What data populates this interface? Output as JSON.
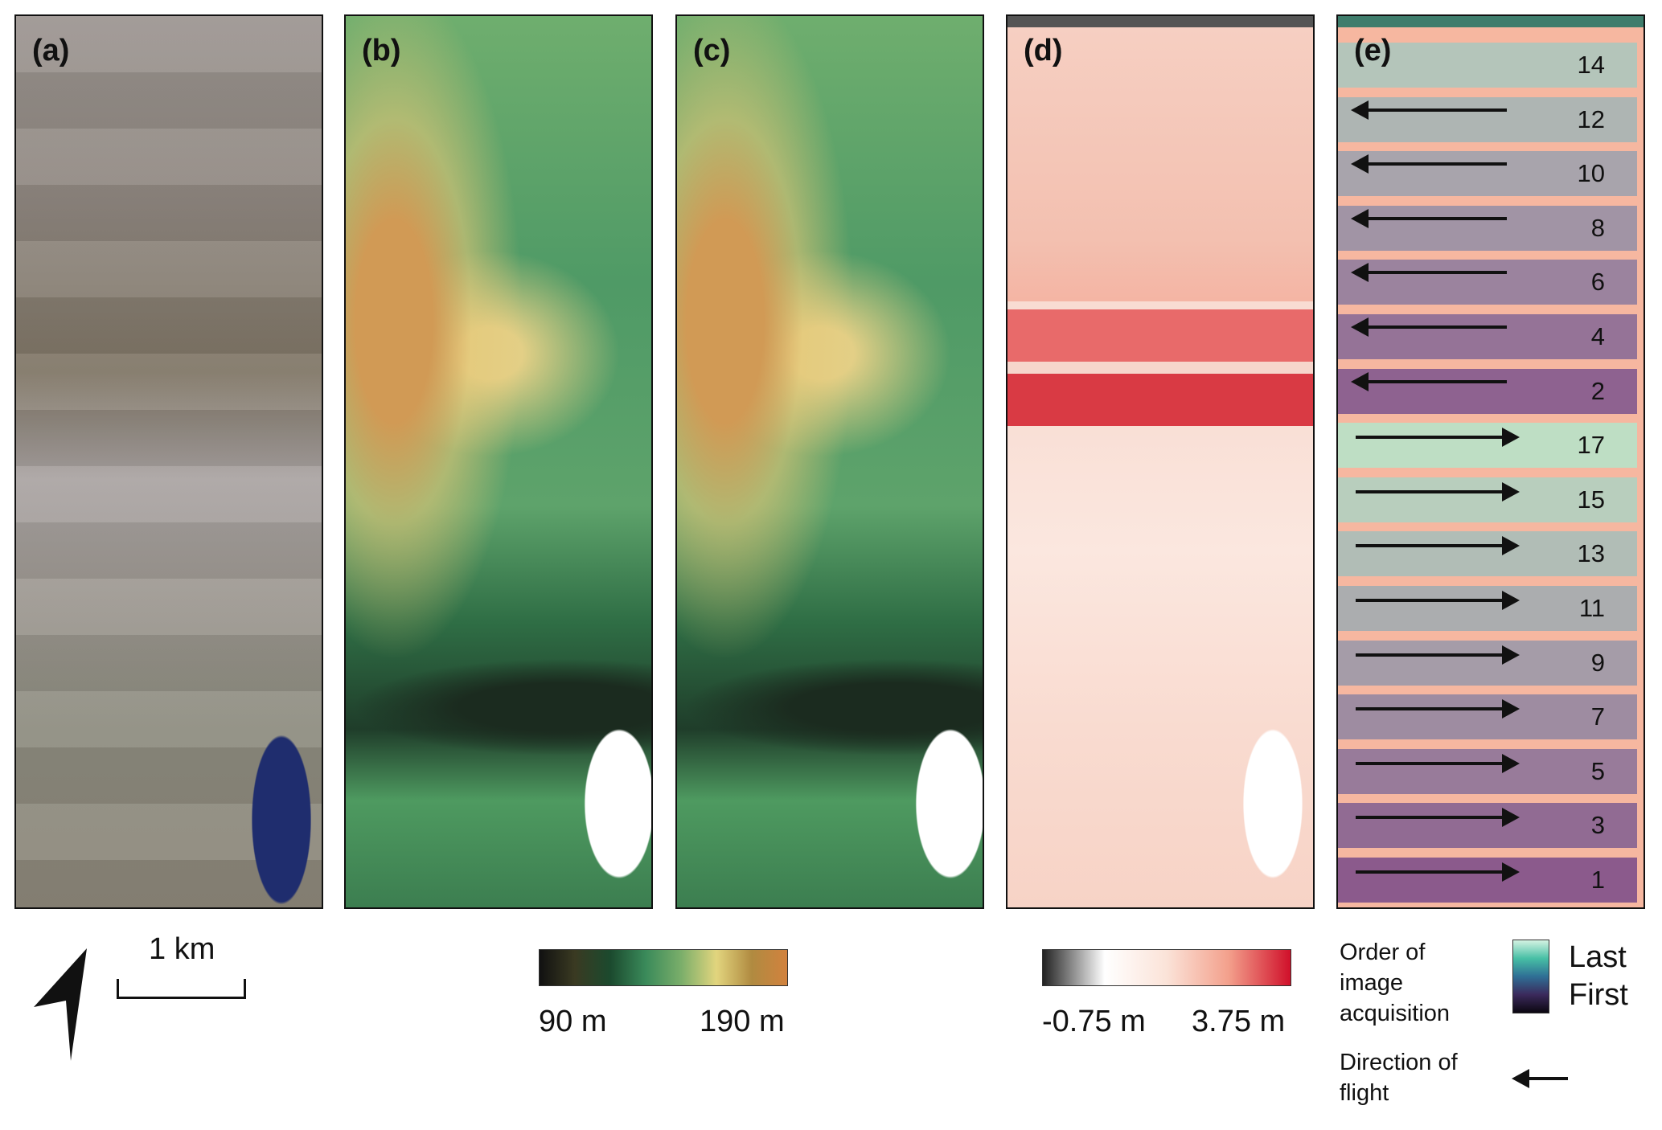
{
  "panels": {
    "a": {
      "label": "(a)"
    },
    "b": {
      "label": "(b)"
    },
    "c": {
      "label": "(c)"
    },
    "d": {
      "label": "(d)"
    },
    "e": {
      "label": "(e)",
      "strips": [
        {
          "number": "14",
          "direction": "none"
        },
        {
          "number": "12",
          "direction": "left"
        },
        {
          "number": "10",
          "direction": "left"
        },
        {
          "number": "8",
          "direction": "left"
        },
        {
          "number": "6",
          "direction": "left"
        },
        {
          "number": "4",
          "direction": "left"
        },
        {
          "number": "2",
          "direction": "left"
        },
        {
          "number": "17",
          "direction": "right"
        },
        {
          "number": "15",
          "direction": "right"
        },
        {
          "number": "13",
          "direction": "right"
        },
        {
          "number": "11",
          "direction": "right"
        },
        {
          "number": "9",
          "direction": "right"
        },
        {
          "number": "7",
          "direction": "right"
        },
        {
          "number": "5",
          "direction": "right"
        },
        {
          "number": "3",
          "direction": "right"
        },
        {
          "number": "1",
          "direction": "right"
        }
      ]
    }
  },
  "legend": {
    "north_arrow_icon": "north-arrow-icon",
    "scale_bar": "1 km",
    "elevation": {
      "min": "90 m",
      "max": "190 m",
      "colors": [
        "#111111",
        "#3a3a22",
        "#1b4a2e",
        "#3a8a5a",
        "#7aae6a",
        "#e2d57e",
        "#b08a40",
        "#d2823e"
      ]
    },
    "difference": {
      "min": "-0.75 m",
      "max": "3.75 m",
      "colors": [
        "#222222",
        "#ffffff",
        "#fbe3d8",
        "#f3a08c",
        "#d0102a"
      ]
    },
    "order": {
      "title": "Order of image acquisition",
      "last": "Last",
      "first": "First",
      "colors": [
        "#0b0710",
        "#3b2a5c",
        "#2f6f95",
        "#47bfa5",
        "#d4f2e2"
      ]
    },
    "direction": {
      "title": "Direction of flight"
    }
  }
}
